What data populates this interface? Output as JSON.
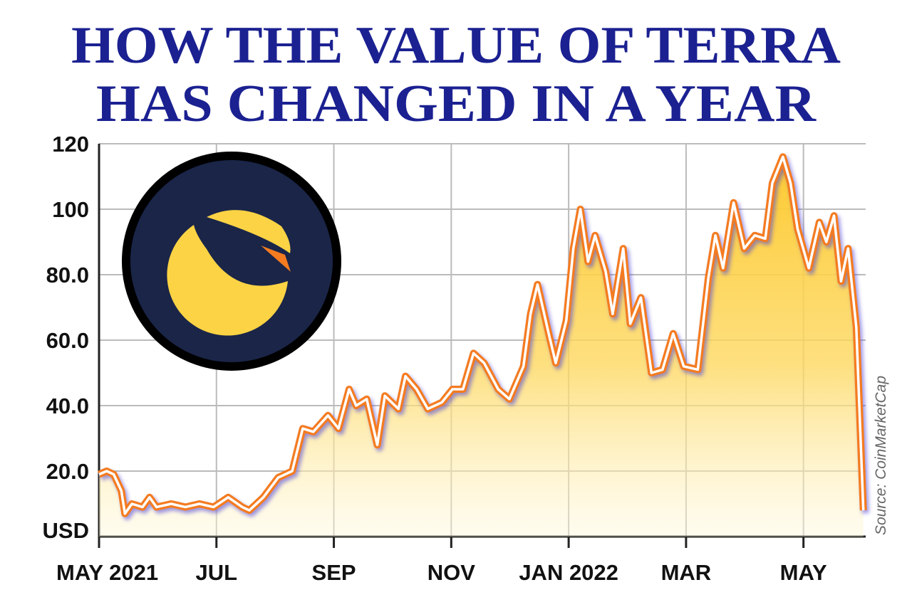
{
  "chart_data": {
    "type": "area-line",
    "title": [
      "HOW THE VALUE OF TERRA",
      "HAS CHANGED IN A YEAR"
    ],
    "y_label": "USD",
    "source": "Source: CoinMarketCap",
    "x": [
      0,
      0.13,
      0.25,
      0.38,
      0.44,
      0.56,
      0.74,
      0.86,
      0.98,
      1.23,
      1.47,
      1.71,
      1.95,
      2.2,
      2.44,
      2.56,
      2.8,
      3.05,
      3.29,
      3.47,
      3.65,
      3.9,
      4.08,
      4.26,
      4.38,
      4.56,
      4.74,
      4.87,
      5.1,
      5.22,
      5.41,
      5.6,
      5.84,
      6.02,
      6.2,
      6.38,
      6.56,
      6.8,
      6.99,
      7.23,
      7.35,
      7.47,
      7.66,
      7.78,
      7.96,
      8.08,
      8.2,
      8.33,
      8.45,
      8.63,
      8.75,
      8.93,
      9.05,
      9.23,
      9.41,
      9.6,
      9.78,
      9.96,
      10.2,
      10.38,
      10.5,
      10.63,
      10.81,
      10.99,
      11.17,
      11.35,
      11.47,
      11.65,
      11.78,
      11.9,
      12.09,
      12.27,
      12.39,
      12.52,
      12.64,
      12.76,
      12.9,
      13.02
    ],
    "series": [
      {
        "name": "Terra",
        "color": "#f47b20",
        "values": [
          19,
          20,
          19,
          14,
          7,
          10,
          9,
          12,
          9,
          10,
          9,
          10,
          9,
          12,
          9,
          8,
          12,
          18,
          20,
          33,
          32,
          37,
          33,
          45,
          40,
          42,
          28,
          43,
          39,
          49,
          45,
          39,
          41,
          45,
          45,
          56,
          53,
          45,
          42,
          52,
          68,
          77,
          62,
          53,
          66,
          88,
          100,
          84,
          92,
          81,
          68,
          88,
          65,
          73,
          50,
          51,
          62,
          52,
          51,
          79,
          92,
          82,
          102,
          88,
          92,
          91,
          108,
          116,
          108,
          94,
          82,
          96,
          90,
          98,
          78,
          88,
          64,
          8
        ]
      }
    ],
    "xlim": [
      0,
      13.06
    ],
    "xticks": [
      {
        "value": 0,
        "label": "MAY 2021"
      },
      {
        "value": 2,
        "label": "JUL"
      },
      {
        "value": 4,
        "label": "SEP"
      },
      {
        "value": 6,
        "label": "NOV"
      },
      {
        "value": 8,
        "label": "JAN 2022"
      },
      {
        "value": 10,
        "label": "MAR"
      },
      {
        "value": 12,
        "label": "MAY"
      }
    ],
    "ylim": [
      0,
      120
    ],
    "yticks": [
      {
        "value": 20,
        "label": "20.0"
      },
      {
        "value": 40,
        "label": "40.0"
      },
      {
        "value": 60,
        "label": "60.0"
      },
      {
        "value": 80,
        "label": "80.0"
      },
      100,
      120
    ],
    "grid": true
  }
}
